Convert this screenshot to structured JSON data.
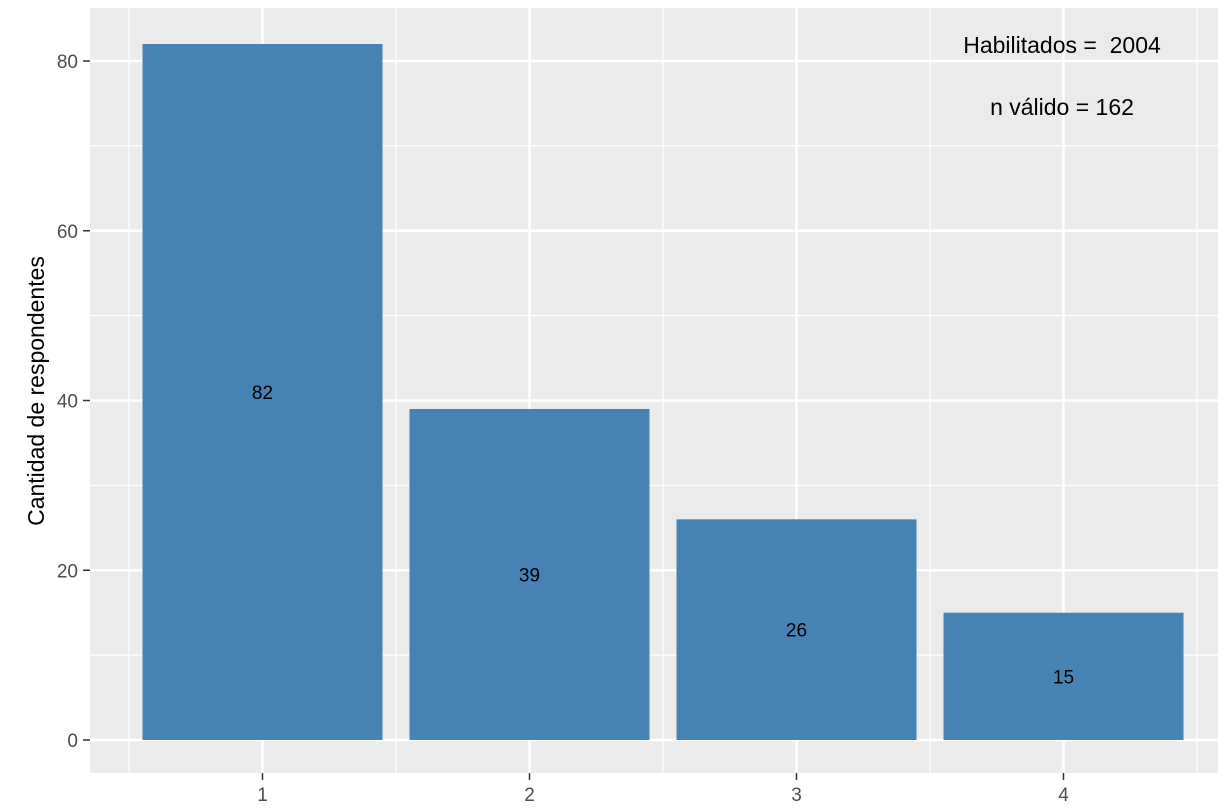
{
  "chart_data": {
    "type": "bar",
    "categories": [
      "1",
      "2",
      "3",
      "4"
    ],
    "values": [
      82,
      39,
      26,
      15
    ],
    "data_labels": [
      "82",
      "39",
      "26",
      "15"
    ],
    "xlabel": "",
    "ylabel": "Cantidad de respondentes",
    "ylim": [
      0,
      86
    ],
    "y_ticks": [
      0,
      20,
      40,
      60,
      80
    ],
    "y_tick_labels": [
      "0",
      "20",
      "40",
      "60",
      "80"
    ],
    "grid": true,
    "annotations": [
      "Habilitados =  2004",
      "n válido = 162"
    ],
    "colors": {
      "bar": "#4682B4",
      "panel": "#EBEBEB",
      "grid": "#FFFFFF"
    }
  }
}
